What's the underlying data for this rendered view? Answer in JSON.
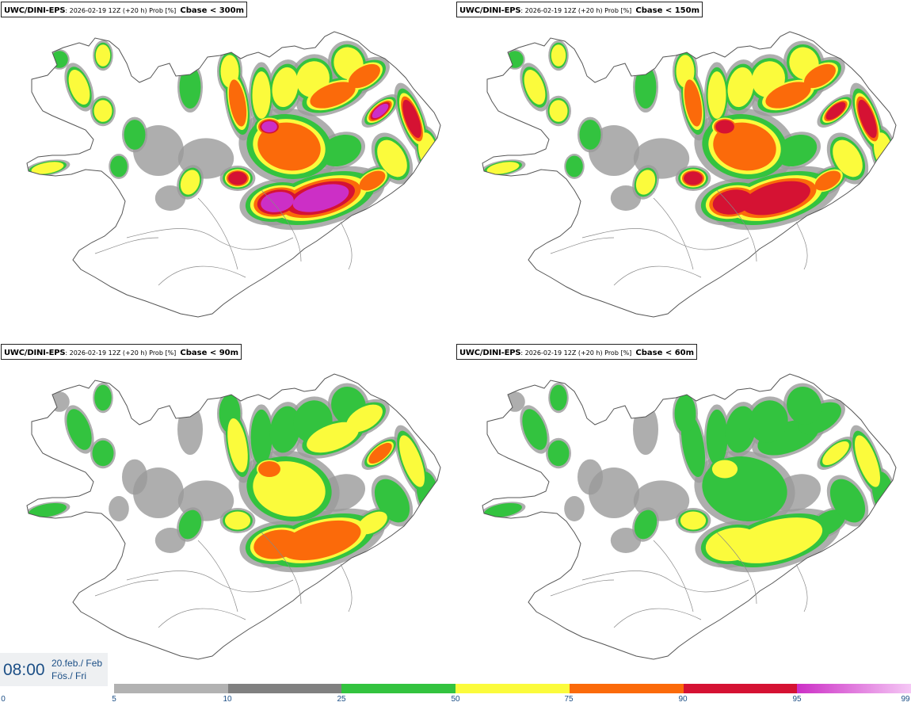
{
  "panels": [
    {
      "model": "UWC/DINI-EPS",
      "meta": ": 2026-02-19 12Z (+20 h) Prob [%]",
      "variable": "Cbase < 300m",
      "intensity": 1.0
    },
    {
      "model": "UWC/DINI-EPS",
      "meta": ": 2026-02-19 12Z (+20 h) Prob [%]",
      "variable": "Cbase < 150m",
      "intensity": 0.85
    },
    {
      "model": "UWC/DINI-EPS",
      "meta": ": 2026-02-19 12Z (+20 h) Prob [%]",
      "variable": "Cbase < 90m",
      "intensity": 0.62
    },
    {
      "model": "UWC/DINI-EPS",
      "meta": ": 2026-02-19 12Z (+20 h) Prob [%]",
      "variable": "Cbase < 60m",
      "intensity": 0.52
    }
  ],
  "valid_time": {
    "clock": "08:00",
    "date": "20.feb./ Feb",
    "weekday": "Fös./ Fri"
  },
  "colorbar": {
    "ticks": [
      "0",
      "5",
      "10",
      "25",
      "50",
      "75",
      "90",
      "95",
      "99"
    ],
    "bins": [
      {
        "from": 5,
        "to": 10,
        "color": "#b2b2b2"
      },
      {
        "from": 10,
        "to": 25,
        "color": "#808080"
      },
      {
        "from": 25,
        "to": 50,
        "color": "#33c33f"
      },
      {
        "from": 50,
        "to": 75,
        "color": "#fbfb3c"
      },
      {
        "from": 75,
        "to": 90,
        "color": "#fb6a0a"
      },
      {
        "from": 90,
        "to": 95,
        "color": "#d51233"
      },
      {
        "from": 95,
        "to": 99,
        "gradient": [
          "#cc2fc6",
          "#f5c8f5"
        ]
      }
    ]
  },
  "map": {
    "land_color": "#ffffff",
    "coast_color": "#555555",
    "sea_color": "#ffffff"
  }
}
